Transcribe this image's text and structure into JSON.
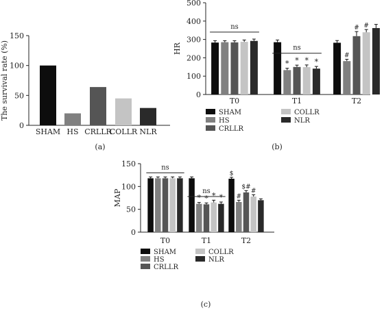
{
  "colors": {
    "SHAM": "#0d0d0d",
    "HS": "#808080",
    "CRLLR": "#555555",
    "COLLR": "#c4c4c4",
    "NLR": "#2a2a2a"
  },
  "chart_data": [
    {
      "id": "a",
      "type": "bar",
      "panel_label": "(a)",
      "categories": [
        "SHAM",
        "HS",
        "CRLLR",
        "COLLR",
        "NLR"
      ],
      "values": [
        100,
        20,
        64,
        45,
        29
      ],
      "ylabel": "The survival rate (%)",
      "xlabel": "",
      "ylim": [
        0,
        150
      ],
      "yticks": [
        0,
        50,
        100,
        150
      ],
      "grid": false,
      "legend": "none"
    },
    {
      "id": "b",
      "type": "bar",
      "panel_label": "(b)",
      "categories": [
        "T0",
        "T1",
        "T2"
      ],
      "ylabel": "HR",
      "xlabel": "",
      "ylim": [
        0,
        500
      ],
      "yticks": [
        0,
        100,
        200,
        300,
        400,
        500
      ],
      "grid": false,
      "legend": "bottom",
      "legend_entries": [
        "SHAM",
        "HS",
        "CRLLR",
        "COLLR",
        "NLR"
      ],
      "series": [
        {
          "name": "SHAM",
          "values": [
            283,
            285,
            282
          ],
          "errors": [
            10,
            12,
            12
          ],
          "marks": [
            "",
            "",
            ""
          ]
        },
        {
          "name": "HS",
          "values": [
            285,
            133,
            182
          ],
          "errors": [
            8,
            10,
            10
          ],
          "marks": [
            "",
            "*",
            "#"
          ]
        },
        {
          "name": "CRLLR",
          "values": [
            284,
            150,
            318
          ],
          "errors": [
            9,
            10,
            25
          ],
          "marks": [
            "",
            "*",
            "#"
          ]
        },
        {
          "name": "COLLR",
          "values": [
            287,
            149,
            339
          ],
          "errors": [
            10,
            12,
            15
          ],
          "marks": [
            "",
            "*",
            "#"
          ]
        },
        {
          "name": "NLR",
          "values": [
            292,
            141,
            362
          ],
          "errors": [
            10,
            12,
            20
          ],
          "marks": [
            "",
            "*",
            ""
          ]
        }
      ],
      "annotations": [
        {
          "text": "ns",
          "group": "T0",
          "level": 340
        },
        {
          "text": "ns",
          "group": "T1",
          "level": 225
        }
      ]
    },
    {
      "id": "c",
      "type": "bar",
      "panel_label": "(c)",
      "categories": [
        "T0",
        "T1",
        "T2"
      ],
      "ylabel": "MAP",
      "xlabel": "",
      "ylim": [
        0,
        150
      ],
      "yticks": [
        0,
        50,
        100,
        150
      ],
      "grid": false,
      "legend": "bottom",
      "legend_entries": [
        "SHAM",
        "HS",
        "CRLLR",
        "COLLR",
        "NLR"
      ],
      "series": [
        {
          "name": "SHAM",
          "values": [
            118,
            118,
            117
          ],
          "errors": [
            3,
            3,
            3
          ],
          "marks": [
            "",
            "",
            "$"
          ]
        },
        {
          "name": "HS",
          "values": [
            118,
            62,
            66
          ],
          "errors": [
            3,
            3,
            4
          ],
          "marks": [
            "",
            "*",
            "#"
          ]
        },
        {
          "name": "CRLLR",
          "values": [
            118,
            61,
            87
          ],
          "errors": [
            3,
            3,
            4
          ],
          "marks": [
            "",
            "*",
            "$#"
          ]
        },
        {
          "name": "COLLR",
          "values": [
            118,
            65,
            78
          ],
          "errors": [
            3,
            5,
            4
          ],
          "marks": [
            "",
            "*",
            "#"
          ]
        },
        {
          "name": "NLR",
          "values": [
            118,
            62,
            70
          ],
          "errors": [
            3,
            4,
            3
          ],
          "marks": [
            "",
            "*",
            ""
          ]
        }
      ],
      "annotations": [
        {
          "text": "ns",
          "group": "T0",
          "level": 130
        },
        {
          "text": "ns",
          "group": "T1",
          "level": 78
        }
      ]
    }
  ]
}
